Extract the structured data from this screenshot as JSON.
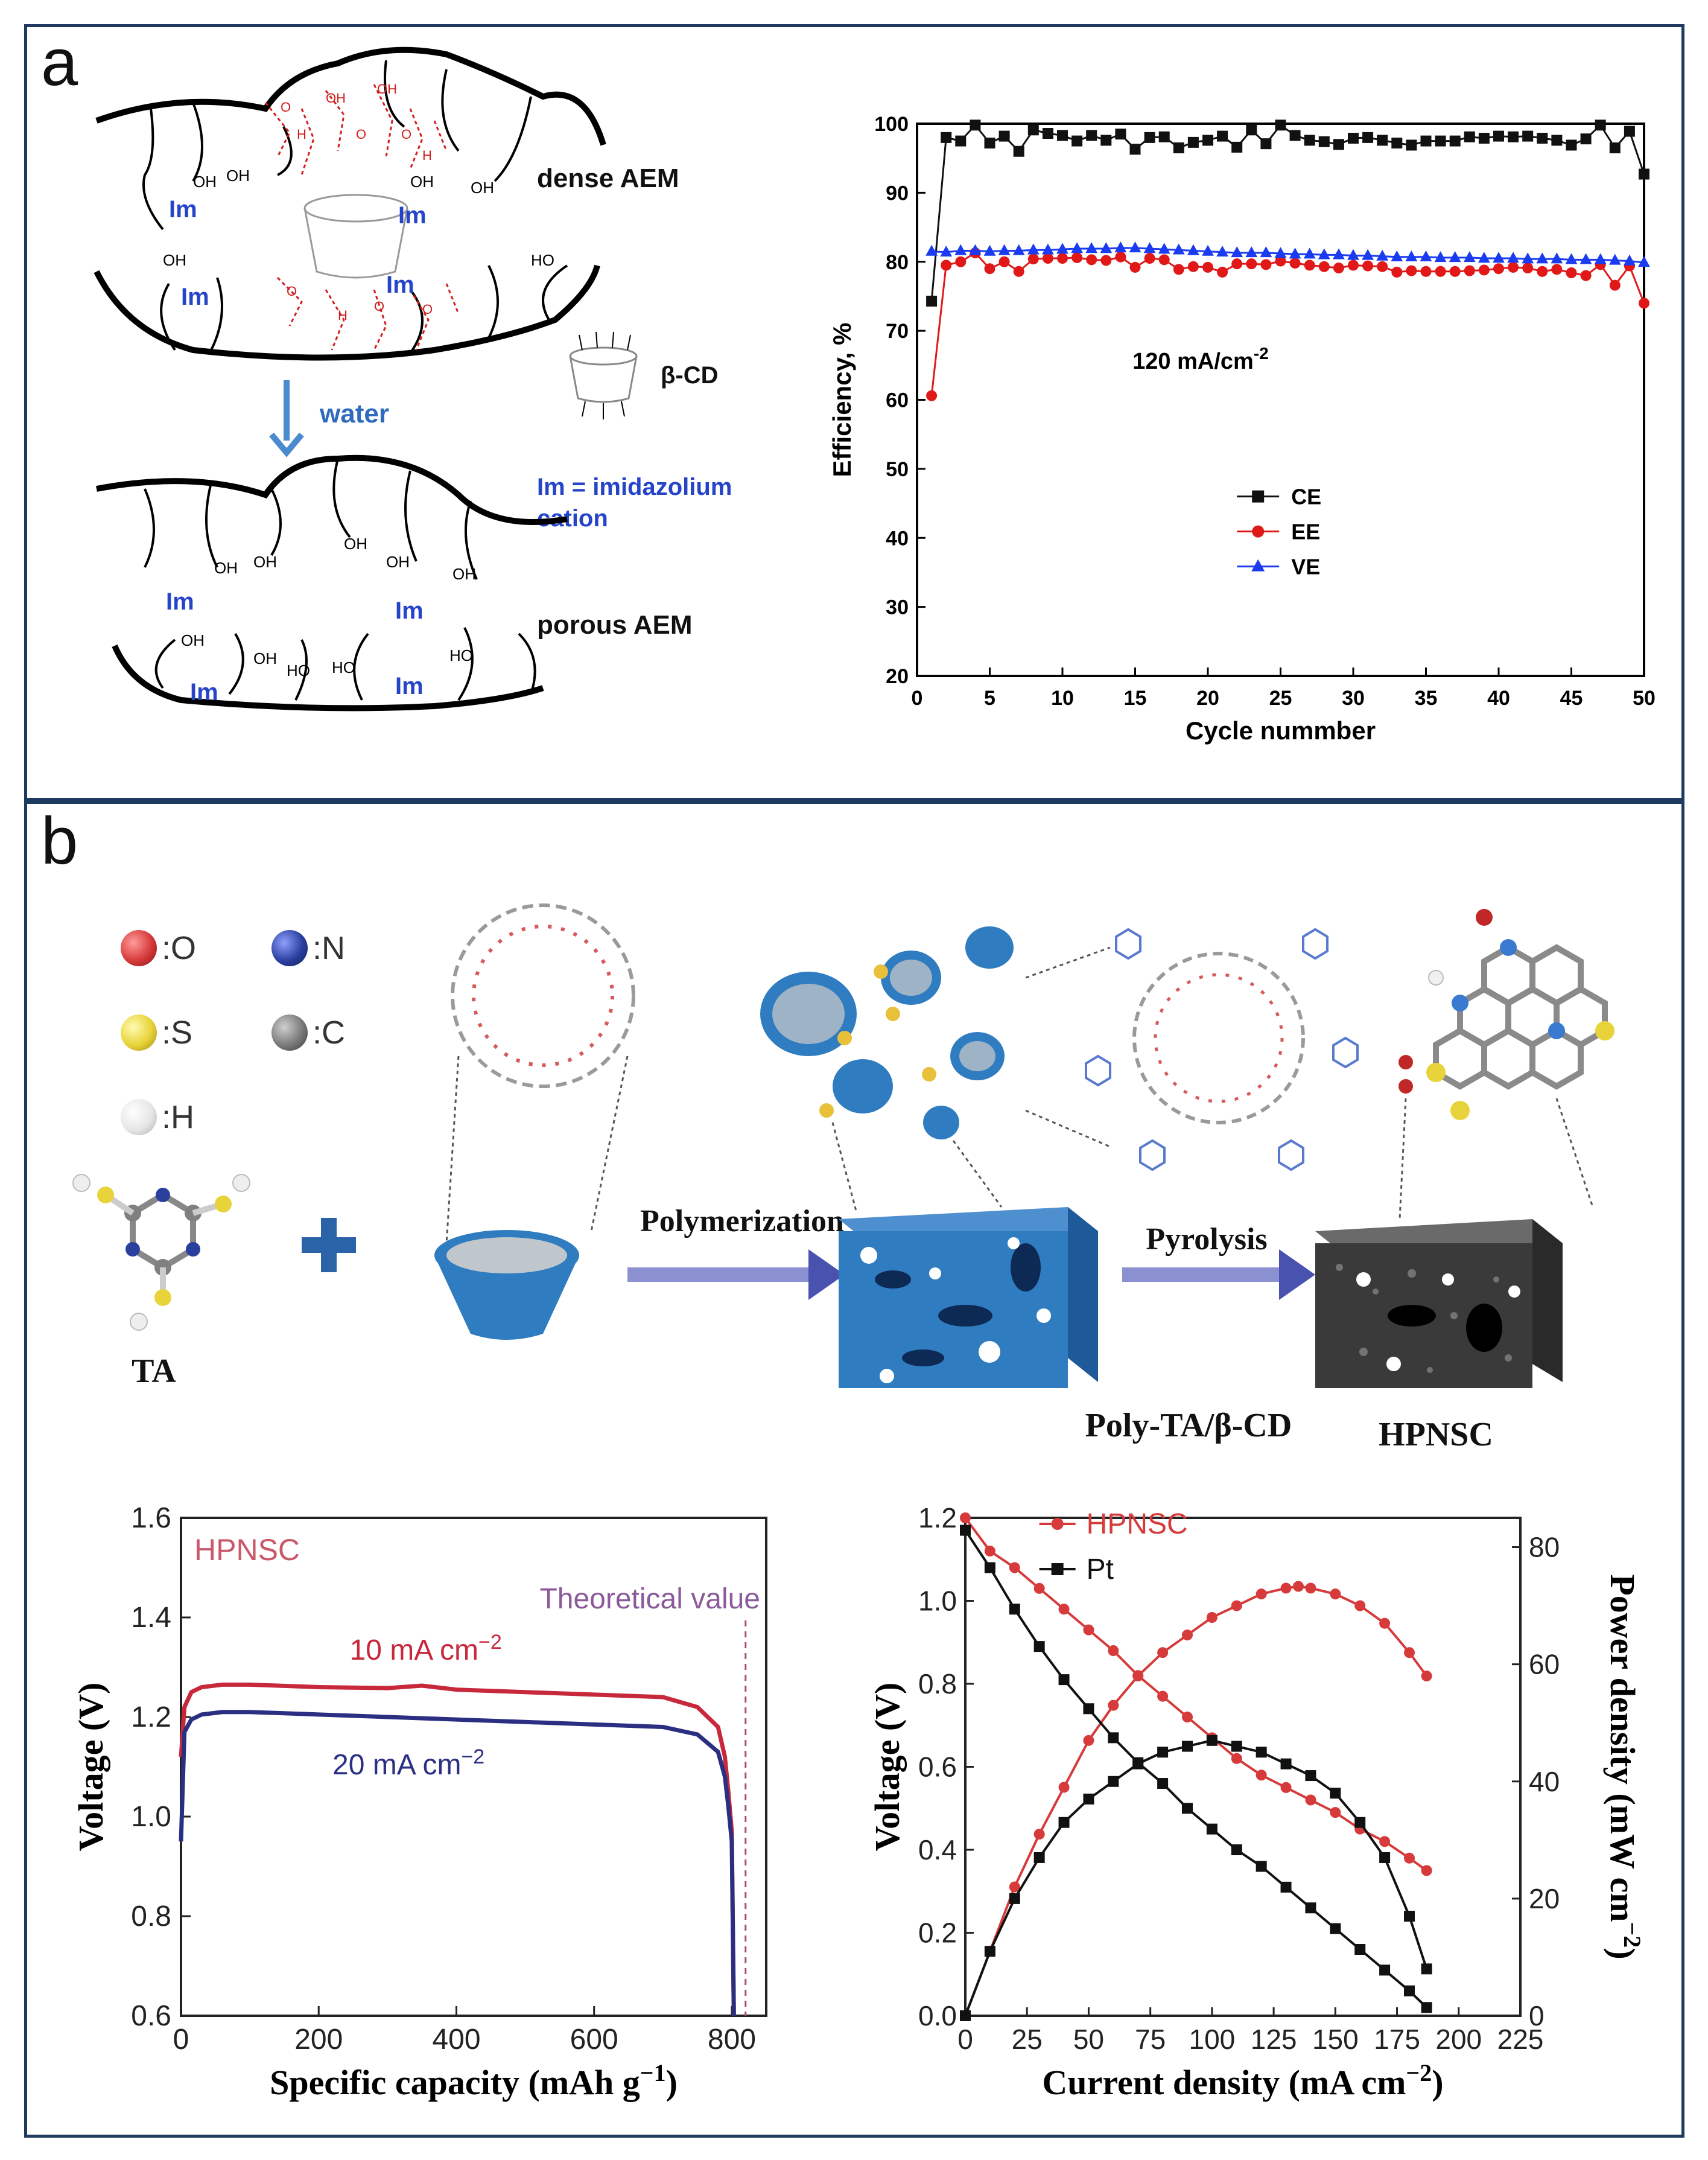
{
  "panel_a": {
    "letter": "a",
    "schematic": {
      "dense_label": "dense AEM",
      "porous_label": "porous AEM",
      "water_label": "water",
      "legend_im": "Im = imidazolium",
      "legend_cation": "cation",
      "bcd_label": "β-CD",
      "im": "Im",
      "oh": "OH",
      "ho": "HO",
      "o": "O",
      "h": "H"
    }
  },
  "panel_b": {
    "letter": "b",
    "legend": [
      {
        "symbol": ":O",
        "color": "#d63a3a"
      },
      {
        "symbol": ":N",
        "color": "#2a3f9e"
      },
      {
        "symbol": ":S",
        "color": "#e8d33a"
      },
      {
        "symbol": ":C",
        "color": "#7a7a7a"
      },
      {
        "symbol": ":H",
        "color": "#e6e6e6"
      }
    ],
    "ta_label": "TA",
    "step1": "Polymerization",
    "step2": "Pyrolysis",
    "product1": "Poly-TA/β-CD",
    "product2": "HPNSC"
  },
  "chart_data": [
    {
      "type": "line",
      "title": "",
      "xlabel": "Cycle nummber",
      "ylabel": "Efficiency, %",
      "xlim": [
        0,
        50
      ],
      "ylim": [
        20,
        100
      ],
      "xticks": [
        0,
        5,
        10,
        15,
        20,
        25,
        30,
        35,
        40,
        45,
        50
      ],
      "yticks": [
        20,
        30,
        40,
        50,
        60,
        70,
        80,
        90,
        100
      ],
      "annotation": "120 mA/cm",
      "annotation_sup": "-2",
      "legend_position": "lower-left",
      "x": [
        1,
        2,
        3,
        4,
        5,
        6,
        7,
        8,
        9,
        10,
        11,
        12,
        13,
        14,
        15,
        16,
        17,
        18,
        19,
        20,
        21,
        22,
        23,
        24,
        25,
        26,
        27,
        28,
        29,
        30,
        31,
        32,
        33,
        34,
        35,
        36,
        37,
        38,
        39,
        40,
        41,
        42,
        43,
        44,
        45,
        46,
        47,
        48,
        49,
        50
      ],
      "series": [
        {
          "name": "CE",
          "color": "#111111",
          "marker": "square",
          "values": [
            74.3,
            98.0,
            97.5,
            99.8,
            97.2,
            98.2,
            96.0,
            99.1,
            98.6,
            98.3,
            97.5,
            98.3,
            97.6,
            98.5,
            96.3,
            98.0,
            98.1,
            96.5,
            97.3,
            97.6,
            98.2,
            96.6,
            99.1,
            97.1,
            99.8,
            98.3,
            97.6,
            97.4,
            97.0,
            97.9,
            98.0,
            97.6,
            97.2,
            96.9,
            97.5,
            97.5,
            97.5,
            98.1,
            97.9,
            98.2,
            98.1,
            98.2,
            97.9,
            97.6,
            96.9,
            97.8,
            99.8,
            96.5,
            98.9,
            92.7
          ]
        },
        {
          "name": "EE",
          "color": "#e01818",
          "marker": "circle",
          "values": [
            60.6,
            79.5,
            80.0,
            81.3,
            79.0,
            80.0,
            78.6,
            80.4,
            80.5,
            80.5,
            80.6,
            80.3,
            80.2,
            80.7,
            79.2,
            80.5,
            80.3,
            78.9,
            79.3,
            79.2,
            78.5,
            79.7,
            79.7,
            79.6,
            80.1,
            79.8,
            79.5,
            79.3,
            79.1,
            79.5,
            79.4,
            79.3,
            78.5,
            78.7,
            78.6,
            78.6,
            78.6,
            78.7,
            78.8,
            79.0,
            79.2,
            79.1,
            78.6,
            78.9,
            78.4,
            78.0,
            79.6,
            76.6,
            79.4,
            74.0
          ]
        },
        {
          "name": "VE",
          "color": "#1a3bf0",
          "marker": "triangle",
          "values": [
            81.5,
            81.4,
            81.6,
            81.6,
            81.5,
            81.6,
            81.6,
            81.7,
            81.7,
            81.8,
            81.9,
            81.9,
            81.9,
            82.0,
            82.0,
            81.9,
            81.8,
            81.7,
            81.6,
            81.5,
            81.4,
            81.3,
            81.3,
            81.3,
            81.2,
            81.1,
            81.1,
            81.0,
            81.0,
            80.9,
            80.9,
            80.8,
            80.7,
            80.7,
            80.7,
            80.6,
            80.6,
            80.6,
            80.5,
            80.5,
            80.5,
            80.4,
            80.4,
            80.4,
            80.3,
            80.3,
            80.3,
            80.2,
            80.1,
            79.9
          ]
        }
      ]
    },
    {
      "type": "line",
      "title": "",
      "xlabel": "Specific capacity (mAh g",
      "xlabel_sup": "−1",
      "xlabel_end": ")",
      "ylabel": "Voltage (V)",
      "xlim": [
        0,
        850
      ],
      "ylim": [
        0.6,
        1.6
      ],
      "xticks": [
        0,
        200,
        400,
        600,
        800
      ],
      "yticks": [
        0.6,
        0.8,
        1.0,
        1.2,
        1.4,
        1.6
      ],
      "ytick_labels": [
        "0.6",
        "0.8",
        "1.0",
        "1.2",
        "1.4",
        "1.6"
      ],
      "corner_label": "HPNSC",
      "theoretical_label": "Theoretical value",
      "theoretical_x": 820,
      "series": [
        {
          "name": "10 mA cm",
          "sup": "−2",
          "color": "#c8283c",
          "x": [
            0,
            5,
            15,
            30,
            60,
            100,
            200,
            300,
            350,
            400,
            500,
            600,
            700,
            750,
            780,
            790,
            795,
            800,
            803
          ],
          "values": [
            1.12,
            1.22,
            1.25,
            1.26,
            1.265,
            1.265,
            1.26,
            1.258,
            1.263,
            1.255,
            1.25,
            1.245,
            1.24,
            1.22,
            1.18,
            1.12,
            1.05,
            0.97,
            0.6
          ]
        },
        {
          "name": "20 mA cm",
          "sup": "−2",
          "color": "#2a2f82",
          "x": [
            0,
            5,
            15,
            30,
            60,
            100,
            200,
            300,
            400,
            500,
            600,
            700,
            750,
            780,
            790,
            795,
            800,
            803
          ],
          "values": [
            0.95,
            1.17,
            1.195,
            1.205,
            1.21,
            1.21,
            1.205,
            1.2,
            1.195,
            1.19,
            1.185,
            1.18,
            1.165,
            1.13,
            1.08,
            1.02,
            0.95,
            0.6
          ]
        }
      ]
    },
    {
      "type": "line",
      "title": "",
      "xlabel": "Current density (mA cm",
      "xlabel_sup": "−2",
      "xlabel_end": ")",
      "ylabel": "Voltage (V)",
      "y2label": "Power density (mW cm",
      "y2label_sup": "−2",
      "y2label_end": ")",
      "xlim": [
        0,
        225
      ],
      "ylim": [
        0,
        1.2
      ],
      "y2lim": [
        0,
        85
      ],
      "xticks": [
        0,
        25,
        50,
        75,
        100,
        125,
        150,
        175,
        200,
        225
      ],
      "yticks": [
        0.0,
        0.2,
        0.4,
        0.6,
        0.8,
        1.0,
        1.2
      ],
      "ytick_labels": [
        "0.0",
        "0.2",
        "0.4",
        "0.6",
        "0.8",
        "1.0",
        "1.2"
      ],
      "y2ticks": [
        0,
        20,
        40,
        60,
        80
      ],
      "series": [
        {
          "name": "HPNSC",
          "color": "#d63a3a",
          "marker": "circle",
          "axis": "left",
          "x": [
            0,
            10,
            20,
            30,
            40,
            50,
            60,
            70,
            80,
            90,
            100,
            110,
            120,
            130,
            140,
            150,
            160,
            170,
            180,
            187
          ],
          "values": [
            1.2,
            1.12,
            1.08,
            1.03,
            0.98,
            0.93,
            0.88,
            0.82,
            0.77,
            0.72,
            0.67,
            0.62,
            0.58,
            0.55,
            0.52,
            0.49,
            0.45,
            0.42,
            0.38,
            0.35
          ]
        },
        {
          "name": "HPNSC-power",
          "color": "#d63a3a",
          "marker": "circle",
          "axis": "right",
          "x": [
            0,
            10,
            20,
            30,
            40,
            50,
            60,
            70,
            80,
            90,
            100,
            110,
            120,
            130,
            135,
            140,
            150,
            160,
            170,
            180,
            187
          ],
          "values": [
            0,
            11,
            22,
            31,
            39,
            47,
            53,
            58,
            62,
            65,
            68,
            70,
            72,
            73,
            73.3,
            73,
            72,
            70,
            67,
            62,
            58
          ]
        },
        {
          "name": "Pt",
          "color": "#111111",
          "marker": "square",
          "axis": "left",
          "x": [
            0,
            10,
            20,
            30,
            40,
            50,
            60,
            70,
            80,
            90,
            100,
            110,
            120,
            130,
            140,
            150,
            160,
            170,
            180,
            187
          ],
          "values": [
            1.17,
            1.08,
            0.98,
            0.89,
            0.81,
            0.74,
            0.67,
            0.61,
            0.56,
            0.5,
            0.45,
            0.4,
            0.36,
            0.31,
            0.26,
            0.21,
            0.16,
            0.11,
            0.06,
            0.02
          ]
        },
        {
          "name": "Pt-power",
          "color": "#111111",
          "marker": "square",
          "axis": "right",
          "x": [
            0,
            10,
            20,
            30,
            40,
            50,
            60,
            70,
            80,
            90,
            100,
            110,
            120,
            130,
            140,
            150,
            160,
            170,
            180,
            187
          ],
          "values": [
            0,
            11,
            20,
            27,
            33,
            37,
            40,
            43,
            45,
            46,
            47,
            46,
            45,
            43,
            41,
            38,
            33,
            27,
            17,
            8
          ]
        }
      ],
      "legend": [
        "HPNSC",
        "Pt"
      ]
    }
  ]
}
